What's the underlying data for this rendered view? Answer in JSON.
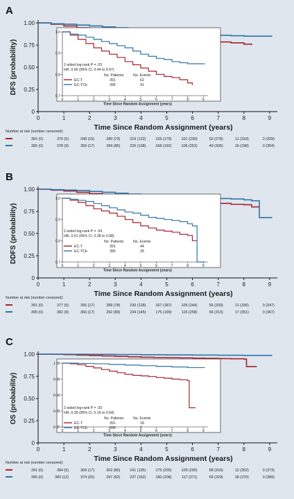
{
  "colors": {
    "ec_t": "#a8202c",
    "ec_tcb": "#2f73a5",
    "background": "#dfe6ee",
    "inset_bg": "#ffffff"
  },
  "number_at_risk_label": "Number at risk (number censored):",
  "chart_data": [
    {
      "type": "line",
      "panel": "A",
      "ylabel": "DFS (probability)",
      "xlabel": "Time Since Random Assignment (years)",
      "xlim": [
        0,
        9.3
      ],
      "ylim": [
        0,
        1.0
      ],
      "xticks": [
        0,
        1,
        2,
        3,
        4,
        5,
        6,
        7,
        8,
        9
      ],
      "yticks": [
        "0",
        "0.25",
        "0.50",
        "0.75",
        "1.00"
      ],
      "series": [
        {
          "name": "EC-T",
          "x": [
            0,
            0.5,
            1,
            1.5,
            2,
            2.5,
            3,
            3.5,
            4,
            4.5,
            5,
            5.5,
            6,
            6.5,
            7,
            7.5,
            8,
            8.3
          ],
          "y": [
            1.0,
            0.985,
            0.965,
            0.945,
            0.925,
            0.91,
            0.895,
            0.88,
            0.86,
            0.845,
            0.83,
            0.815,
            0.8,
            0.79,
            0.785,
            0.775,
            0.76,
            0.75
          ]
        },
        {
          "name": "EC-TCb",
          "x": [
            0,
            0.5,
            1,
            1.5,
            2,
            2.5,
            3,
            3.5,
            4,
            4.5,
            5,
            5.5,
            6,
            6.5,
            7,
            7.5,
            8,
            8.5,
            9.1
          ],
          "y": [
            1.0,
            0.99,
            0.985,
            0.975,
            0.965,
            0.955,
            0.945,
            0.935,
            0.925,
            0.91,
            0.895,
            0.885,
            0.875,
            0.87,
            0.86,
            0.855,
            0.85,
            0.85,
            0.85
          ]
        }
      ],
      "inset": {
        "yticks": [
          "1.0",
          "0.9",
          "0.8",
          "0.7"
        ],
        "yrange": [
          0.7,
          1.0
        ],
        "xticks": [
          0,
          1,
          2,
          3,
          4,
          5,
          6,
          7,
          8,
          9
        ],
        "xlabel": "Time Since Random Assignment (years)",
        "test": "2-sided log-rank P = .03",
        "hr": "HR, 0.66 (95% CI, 0.44 to 0.97)",
        "col_patients": "No. Patients",
        "col_events": "No. Events",
        "rows": [
          {
            "arm": "EC-T",
            "patients": "391",
            "events": "62"
          },
          {
            "arm": "EC-TCb",
            "patients": "395",
            "events": "41"
          }
        ]
      },
      "risk": {
        "ec_t": [
          "391 (0)",
          "370 (5)",
          "349 (15)",
          "280 (73)",
          "219 (122)",
          "155 (179)",
          "101 (230)",
          "53 (278)",
          "11 (318)",
          "0 (329)"
        ],
        "ec_tcb": [
          "395 (0)",
          "378 (9)",
          "359 (17)",
          "284 (85)",
          "225 (138)",
          "168 (192)",
          "106 (252)",
          "49 (305)",
          "16 (338)",
          "0 (354)"
        ]
      }
    },
    {
      "type": "line",
      "panel": "B",
      "ylabel": "DDFS (probability)",
      "xlabel": "Time Since Random Assignment (years)",
      "xlim": [
        0,
        9.3
      ],
      "ylim": [
        0,
        1.0
      ],
      "xticks": [
        0,
        1,
        2,
        3,
        4,
        5,
        6,
        7,
        8,
        9
      ],
      "yticks": [
        "0",
        "0.25",
        "0.50",
        "0.75",
        "1.00"
      ],
      "series": [
        {
          "name": "EC-T",
          "x": [
            0,
            0.5,
            1,
            1.5,
            2,
            2.5,
            3,
            3.5,
            4,
            4.5,
            5,
            5.5,
            6,
            6.5,
            7,
            7.5,
            8,
            8.3,
            8.6
          ],
          "y": [
            1.0,
            0.99,
            0.98,
            0.965,
            0.95,
            0.94,
            0.93,
            0.915,
            0.9,
            0.885,
            0.87,
            0.86,
            0.85,
            0.845,
            0.84,
            0.83,
            0.825,
            0.8,
            0.8
          ]
        },
        {
          "name": "EC-TCb",
          "x": [
            0,
            0.5,
            1,
            1.5,
            2,
            2.5,
            3,
            3.5,
            4,
            4.5,
            5,
            5.5,
            6,
            6.5,
            7,
            7.5,
            8,
            8.3,
            8.6,
            9.1
          ],
          "y": [
            1.0,
            0.995,
            0.99,
            0.985,
            0.975,
            0.965,
            0.955,
            0.945,
            0.935,
            0.93,
            0.92,
            0.91,
            0.905,
            0.9,
            0.895,
            0.89,
            0.88,
            0.87,
            0.68,
            0.68
          ]
        }
      ],
      "inset": {
        "yticks": [
          "1.0",
          "0.9",
          "0.8",
          "0.7"
        ],
        "yrange": [
          0.7,
          1.0
        ],
        "xticks": [
          0,
          1,
          2,
          3,
          4,
          5,
          6,
          7,
          8,
          9
        ],
        "xlabel": "Time Since Random Assignment (years)",
        "test": "2-sided log-rank P = .04",
        "hr": "HR, 0.61 (95% CI, 0.38 to 0.98)",
        "col_patients": "No. Patients",
        "col_events": "No. Events",
        "rows": [
          {
            "arm": "EC-T",
            "patients": "391",
            "events": "44"
          },
          {
            "arm": "EC-TCb",
            "patients": "395",
            "events": "28"
          }
        ]
      },
      "risk": {
        "ec_t": [
          "391 (0)",
          "377 (5)",
          "356 (17)",
          "289 (78)",
          "230 (128)",
          "167 (187)",
          "105 (244)",
          "56 (293)",
          "11 (336)",
          "0 (347)"
        ],
        "ec_tcb": [
          "395 (0)",
          "382 (9)",
          "366 (17)",
          "292 (89)",
          "234 (145)",
          "175 (199)",
          "115 (258)",
          "56 (313)",
          "17 (351)",
          "0 (367)"
        ]
      }
    },
    {
      "type": "line",
      "panel": "C",
      "ylabel": "OS (probability)",
      "xlabel": "Time Since Random Assignment (years)",
      "xlim": [
        0,
        9.3
      ],
      "ylim": [
        0,
        1.0
      ],
      "xticks": [
        0,
        1,
        2,
        3,
        4,
        5,
        6,
        7,
        8,
        9
      ],
      "yticks": [
        "0",
        "0.25",
        "0.50",
        "0.75",
        "1.00"
      ],
      "series": [
        {
          "name": "EC-T",
          "x": [
            0,
            0.5,
            1,
            1.5,
            2,
            2.5,
            3,
            3.5,
            4,
            4.5,
            5,
            5.5,
            6,
            6.5,
            7,
            7.5,
            8,
            8.1,
            8.5
          ],
          "y": [
            1.0,
            0.998,
            0.995,
            0.99,
            0.985,
            0.98,
            0.975,
            0.97,
            0.965,
            0.962,
            0.96,
            0.958,
            0.955,
            0.953,
            0.95,
            0.948,
            0.945,
            0.86,
            0.86
          ]
        },
        {
          "name": "EC-TCb",
          "x": [
            0,
            1,
            2,
            3,
            4,
            5,
            6,
            7,
            8,
            8.5,
            9.1
          ],
          "y": [
            1.0,
            0.999,
            0.998,
            0.996,
            0.994,
            0.992,
            0.99,
            0.988,
            0.986,
            0.986,
            0.986
          ]
        }
      ],
      "inset": {
        "yticks": [
          "1.00",
          "0.95",
          "0.90",
          "0.85",
          "0.80"
        ],
        "yrange": [
          0.8,
          1.0
        ],
        "xticks": [
          0,
          1,
          2,
          3,
          4,
          5,
          6,
          7,
          8,
          9
        ],
        "xlabel": "Time Since Random Assignment (years)",
        "test": "2-sided log-rank P = .03",
        "hr": "HR, 0.39 (95% CI, 0.16 to 0.94)",
        "col_patients": "No. Patients",
        "col_events": "No. Events",
        "rows": [
          {
            "arm": "EC-T",
            "patients": "391",
            "events": "18"
          },
          {
            "arm": "EC-TCb",
            "patients": "395",
            "events": "7"
          }
        ]
      },
      "risk": {
        "ec_t": [
          "391 (0)",
          "384 (5)",
          "369 (17)",
          "302 (80)",
          "241 (135)",
          "175 (200)",
          "109 (205)",
          "58 (316)",
          "12 (362)",
          "0 (373)"
        ],
        "ec_tcb": [
          "395 (0)",
          "383 (12)",
          "374 (20)",
          "297 (92)",
          "237 (152)",
          "180 (208)",
          "117 (271)",
          "59 (329)",
          "18 (370)",
          "0 (389)"
        ]
      }
    }
  ]
}
